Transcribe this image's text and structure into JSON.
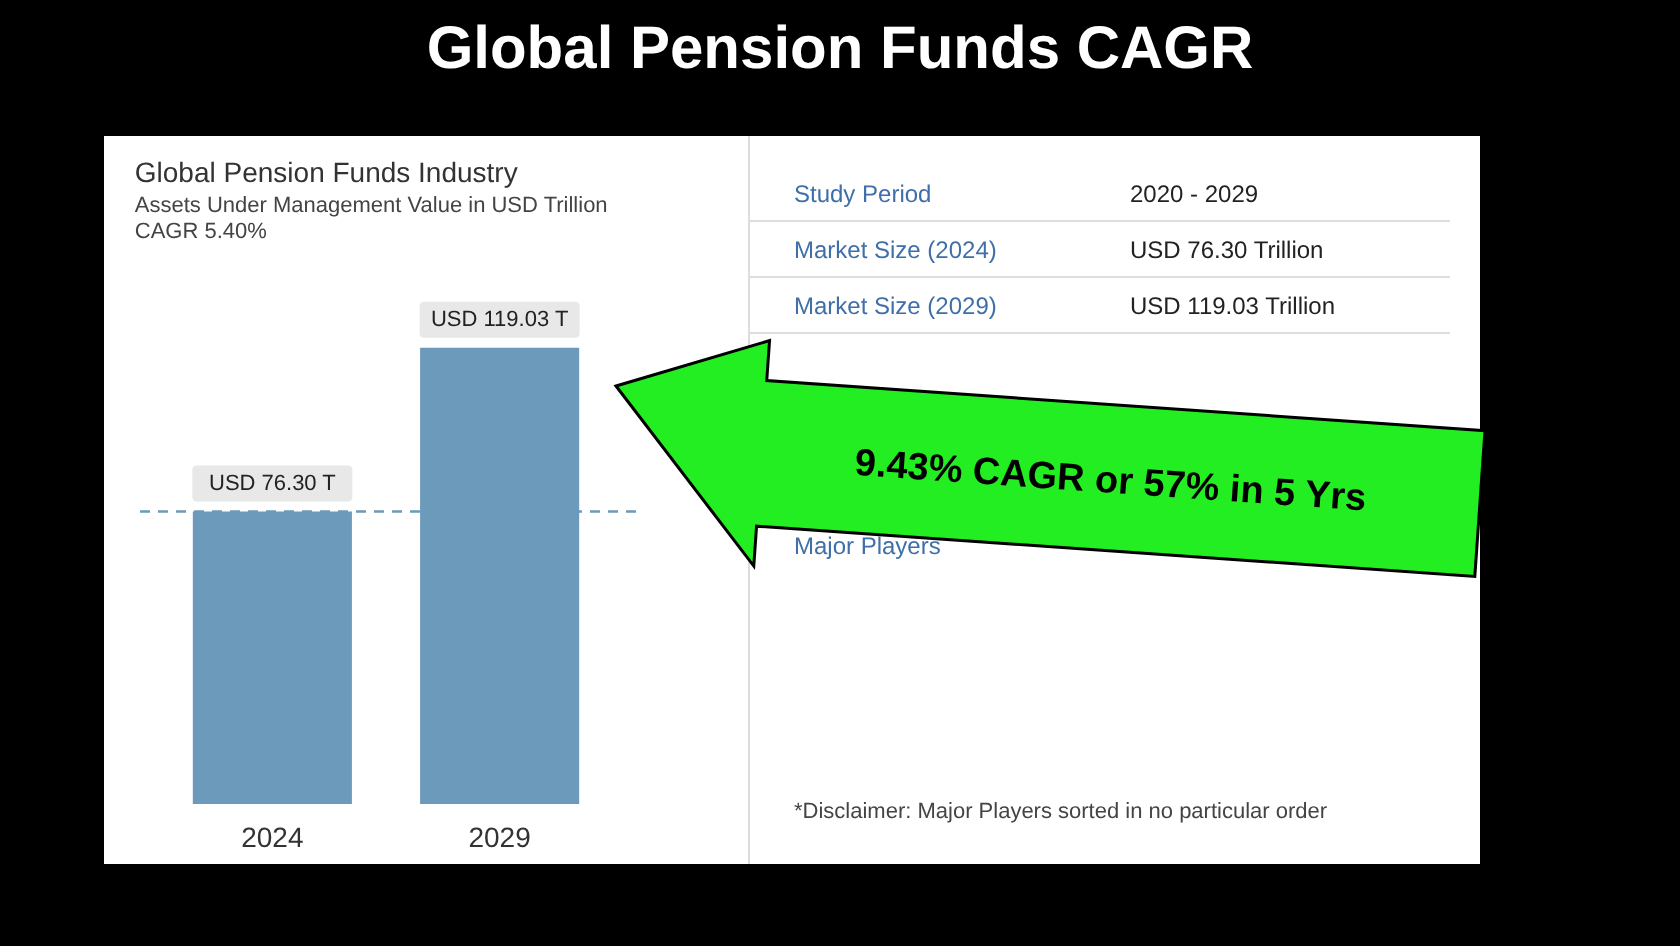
{
  "chart_data": {
    "type": "bar",
    "title": "Global Pension Funds CAGR",
    "subtitle": "Global Pension Funds Industry",
    "categories": [
      "2024",
      "2029"
    ],
    "values": [
      76.3,
      119.03
    ],
    "color": "#6b9aba",
    "value_labels": [
      "USD 76.30 T",
      "USD 119.03 T"
    ],
    "tick_labels": "x",
    "ref_lines": [
      {
        "axis": "y",
        "value": 76.3,
        "color": "#6b9aba",
        "line_style": "dashed"
      }
    ],
    "annotations": [
      "Assets Under Management Value in USD Trillion",
      "CAGR 5.40%",
      "Study Period",
      "2020 - 2029",
      "Market Size (2024)",
      "USD 76.30 Trillion",
      "Market Size (2029)",
      "USD 119.03 Trillion",
      "Major Players",
      "*Disclaimer: Major Players sorted in no particular order",
      "9.43% CAGR or 57% in 5 Yrs"
    ]
  }
}
